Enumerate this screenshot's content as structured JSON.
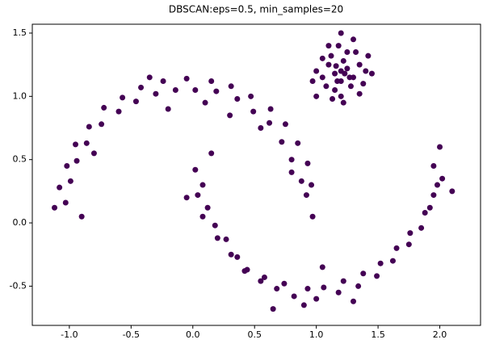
{
  "chart_data": {
    "type": "scatter",
    "title": "DBSCAN:eps=0.5, min_samples=20",
    "color": "#440154",
    "xlim": [
      -1.3,
      2.33
    ],
    "ylim": [
      -0.81,
      1.57
    ],
    "xticks": [
      {
        "value": -1,
        "label": "-1.0"
      },
      -0.5,
      {
        "value": 0,
        "label": "0.0"
      },
      0.5,
      {
        "value": 1,
        "label": "1.0"
      },
      1.5,
      {
        "value": 2,
        "label": "2.0"
      }
    ],
    "yticks": [
      -0.5,
      {
        "value": 0,
        "label": "0.0"
      },
      0.5,
      {
        "value": 1,
        "label": "1.0"
      },
      1.5
    ],
    "x": [
      0.97,
      0.92,
      0.96,
      0.88,
      0.93,
      0.8,
      0.85,
      0.72,
      0.75,
      0.62,
      0.63,
      0.49,
      0.47,
      0.36,
      0.31,
      0.19,
      0.15,
      0.02,
      -0.05,
      -0.14,
      -0.24,
      -0.3,
      -0.42,
      -0.46,
      -0.57,
      -0.6,
      -0.72,
      -0.74,
      -0.84,
      -0.86,
      -0.95,
      -0.94,
      -1.02,
      -0.99,
      -1.08,
      -1.03,
      -1.12,
      0.1,
      -0.35,
      0.55,
      -0.8,
      -0.9,
      0.8,
      -0.2,
      0.3,
      0.02,
      0.08,
      0.04,
      0.12,
      0.08,
      0.18,
      0.2,
      0.27,
      0.31,
      0.36,
      0.42,
      0.44,
      0.55,
      0.58,
      0.68,
      0.74,
      0.82,
      0.93,
      1.0,
      1.06,
      1.18,
      1.22,
      1.34,
      1.38,
      1.49,
      1.52,
      1.62,
      1.65,
      1.75,
      1.76,
      1.85,
      1.88,
      1.92,
      1.95,
      1.98,
      2.02,
      1.95,
      0.65,
      0.9,
      1.3,
      2.1,
      2.0,
      0.15,
      -0.05,
      1.05,
      1.2,
      1.1,
      1.3,
      1.15,
      1.25,
      1.05,
      1.35,
      1.2,
      1.18,
      1.0,
      1.4,
      1.12,
      1.28,
      1.08,
      1.32,
      1.22,
      1.15,
      1.25,
      1.17,
      1.27,
      1.1,
      1.3,
      1.05,
      1.38,
      1.45,
      0.97,
      1.2,
      1.22,
      1.13,
      1.35,
      1.0,
      1.42,
      1.2,
      1.23,
      1.16
    ],
    "values": [
      0.05,
      0.22,
      0.3,
      0.33,
      0.47,
      0.5,
      0.63,
      0.64,
      0.78,
      0.79,
      0.9,
      0.88,
      1.0,
      0.98,
      1.08,
      1.04,
      1.12,
      1.05,
      1.14,
      1.05,
      1.12,
      1.02,
      1.07,
      0.96,
      0.99,
      0.88,
      0.91,
      0.78,
      0.76,
      0.63,
      0.62,
      0.49,
      0.45,
      0.33,
      0.28,
      0.16,
      0.12,
      0.95,
      1.15,
      0.75,
      0.55,
      0.05,
      0.4,
      0.9,
      0.85,
      0.42,
      0.3,
      0.22,
      0.12,
      0.05,
      -0.02,
      -0.12,
      -0.13,
      -0.25,
      -0.27,
      -0.38,
      -0.37,
      -0.46,
      -0.43,
      -0.52,
      -0.48,
      -0.58,
      -0.52,
      -0.6,
      -0.51,
      -0.55,
      -0.46,
      -0.5,
      -0.4,
      -0.42,
      -0.32,
      -0.3,
      -0.2,
      -0.17,
      -0.08,
      -0.04,
      0.08,
      0.12,
      0.22,
      0.3,
      0.35,
      0.45,
      -0.68,
      -0.65,
      -0.62,
      0.25,
      0.6,
      0.55,
      0.2,
      -0.35,
      1.2,
      1.25,
      1.15,
      1.05,
      1.35,
      1.15,
      1.25,
      1.0,
      1.4,
      1.2,
      1.2,
      1.32,
      1.08,
      1.08,
      1.35,
      1.28,
      1.18,
      1.22,
      1.12,
      1.15,
      1.4,
      1.45,
      1.3,
      1.1,
      1.18,
      1.12,
      1.5,
      0.95,
      0.98,
      1.02,
      1.0,
      1.32,
      1.12,
      1.18,
      1.24
    ]
  }
}
